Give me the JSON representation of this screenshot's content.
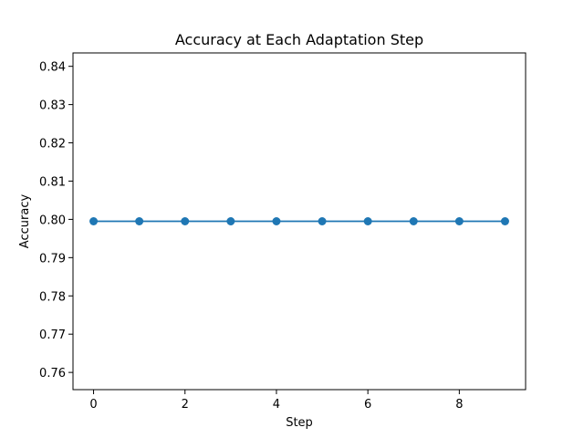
{
  "chart_data": {
    "type": "line",
    "title": "Accuracy at Each Adaptation Step",
    "xlabel": "Step",
    "ylabel": "Accuracy",
    "x": [
      0,
      1,
      2,
      3,
      4,
      5,
      6,
      7,
      8,
      9
    ],
    "series": [
      {
        "values": [
          0.7995,
          0.7995,
          0.7995,
          0.7995,
          0.7995,
          0.7995,
          0.7995,
          0.7995,
          0.7995,
          0.7995
        ],
        "color": "#1f77b4",
        "marker": "circle"
      }
    ],
    "xlim": [
      -0.45,
      9.45
    ],
    "ylim": [
      0.7555,
      0.8435
    ],
    "xticks": [
      0,
      2,
      4,
      6,
      8
    ],
    "xtick_labels": [
      "0",
      "2",
      "4",
      "6",
      "8"
    ],
    "yticks": [
      0.76,
      0.77,
      0.78,
      0.79,
      0.8,
      0.81,
      0.82,
      0.83,
      0.84
    ],
    "ytick_labels": [
      "0.76",
      "0.77",
      "0.78",
      "0.79",
      "0.80",
      "0.81",
      "0.82",
      "0.83",
      "0.84"
    ],
    "grid": false,
    "legend": "none"
  }
}
